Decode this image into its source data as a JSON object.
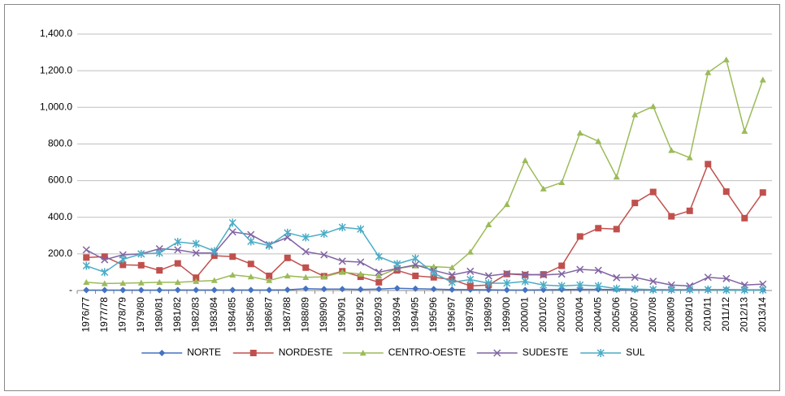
{
  "chart_data": {
    "type": "line",
    "categories": [
      "1976/77",
      "1977/78",
      "1978/79",
      "1979/80",
      "1980/81",
      "1981/82",
      "1982/83",
      "1983/84",
      "1984/85",
      "1985/86",
      "1986/87",
      "1987/88",
      "1988/89",
      "1989/90",
      "1990/91",
      "1991/92",
      "1992/93",
      "1993/94",
      "1994/95",
      "1995/96",
      "1996/97",
      "1997/98",
      "1998/99",
      "1999/00",
      "2000/01",
      "2001/02",
      "2002/03",
      "2003/04",
      "2004/05",
      "2005/06",
      "2006/07",
      "2007/08",
      "2008/09",
      "2009/10",
      "2010/11",
      "2011/12",
      "2012/13",
      "2013/14"
    ],
    "series": [
      {
        "name": "NORTE",
        "color": "#4472c4",
        "marker": "diamond",
        "values": [
          2,
          2,
          2,
          2,
          2,
          3,
          3,
          3,
          3,
          3,
          3,
          4,
          10,
          8,
          8,
          6,
          8,
          12,
          10,
          8,
          5,
          5,
          4,
          3,
          3,
          4,
          5,
          6,
          6,
          5,
          4,
          4,
          4,
          4,
          5,
          5,
          4,
          4
        ]
      },
      {
        "name": "NORDESTE",
        "color": "#c0504d",
        "marker": "square",
        "values": [
          180,
          185,
          140,
          138,
          110,
          148,
          70,
          190,
          185,
          145,
          80,
          178,
          125,
          78,
          105,
          75,
          45,
          110,
          80,
          72,
          60,
          25,
          30,
          90,
          85,
          88,
          135,
          295,
          340,
          335,
          478,
          538,
          405,
          435,
          690,
          540,
          395,
          535
        ]
      },
      {
        "name": "CENTRO-OESTE",
        "color": "#9bbb59",
        "marker": "triangle",
        "values": [
          45,
          38,
          40,
          42,
          45,
          45,
          50,
          55,
          85,
          75,
          55,
          80,
          72,
          75,
          100,
          90,
          80,
          120,
          135,
          130,
          125,
          210,
          360,
          470,
          710,
          555,
          590,
          860,
          815,
          620,
          960,
          1005,
          765,
          725,
          1190,
          1260,
          870,
          1150
        ]
      },
      {
        "name": "SUDESTE",
        "color": "#8064a2",
        "marker": "x",
        "values": [
          222,
          168,
          195,
          200,
          228,
          222,
          205,
          205,
          320,
          305,
          250,
          290,
          212,
          195,
          160,
          155,
          100,
          120,
          140,
          110,
          85,
          105,
          80,
          92,
          88,
          85,
          90,
          115,
          110,
          70,
          72,
          50,
          30,
          25,
          72,
          65,
          30,
          35
        ]
      },
      {
        "name": "SUL",
        "color": "#4bacc6",
        "marker": "star",
        "values": [
          135,
          100,
          170,
          200,
          205,
          265,
          255,
          215,
          370,
          268,
          245,
          315,
          290,
          310,
          345,
          335,
          185,
          145,
          175,
          95,
          45,
          60,
          40,
          40,
          50,
          30,
          25,
          30,
          25,
          10,
          8,
          5,
          5,
          5,
          5,
          3,
          3,
          3
        ]
      }
    ],
    "ylim": [
      0,
      1400
    ],
    "yticks": [
      {
        "value": 0,
        "label": "-"
      },
      {
        "value": 200,
        "label": "200.0"
      },
      {
        "value": 400,
        "label": "400.0"
      },
      {
        "value": 600,
        "label": "600.0"
      },
      {
        "value": 800,
        "label": "800.0"
      },
      {
        "value": 1000,
        "label": "1,000.0"
      },
      {
        "value": 1200,
        "label": "1,200.0"
      },
      {
        "value": 1400,
        "label": "1,400.0"
      }
    ],
    "grid": true,
    "legend": "bottom"
  }
}
